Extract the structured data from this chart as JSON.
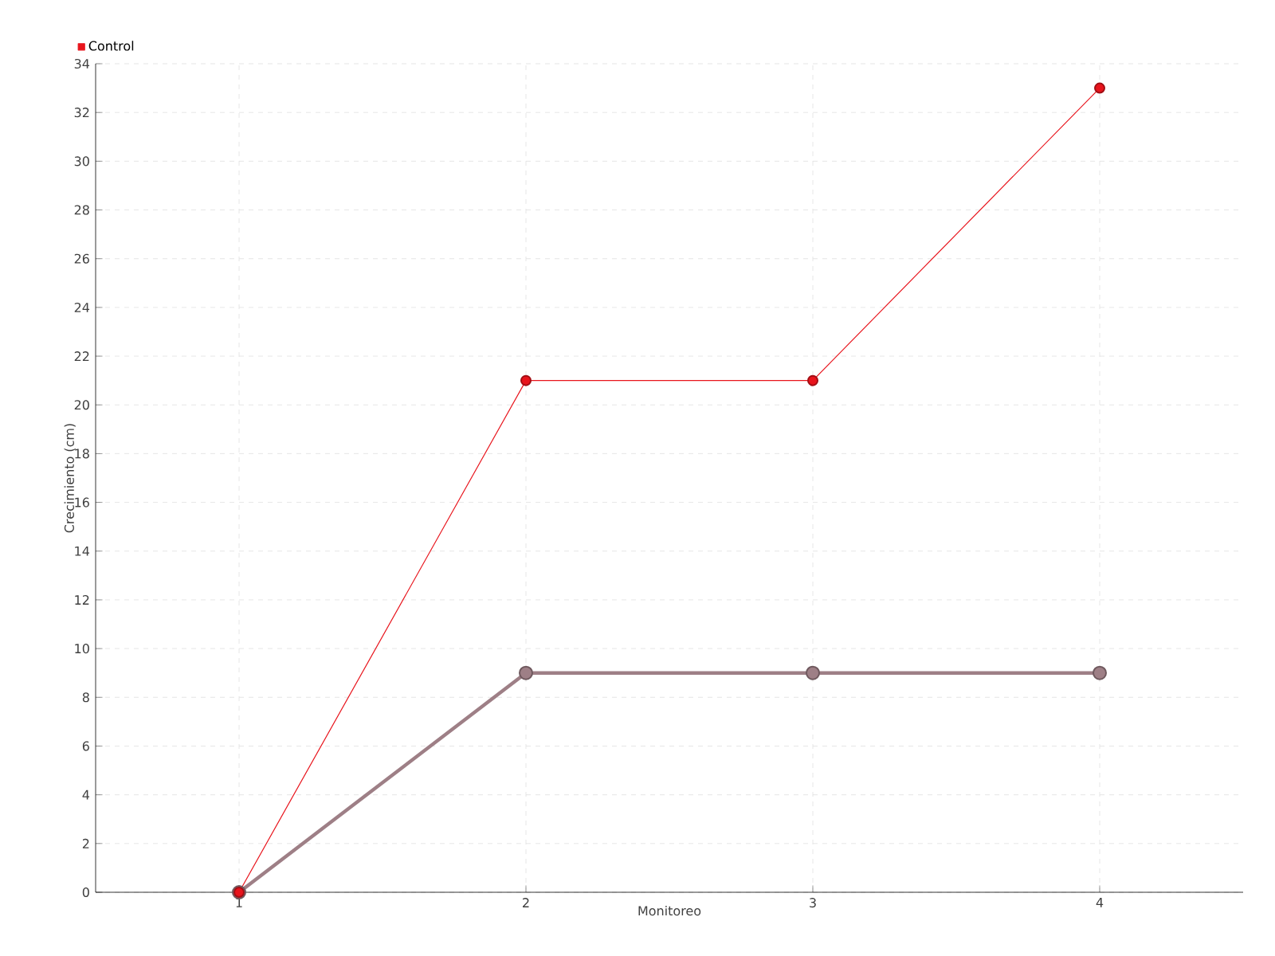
{
  "chart_data": {
    "type": "line",
    "xlabel": "Monitoreo",
    "ylabel": "Crecimiento (cm)",
    "categories": [
      "1",
      "2",
      "3",
      "4"
    ],
    "series": [
      {
        "color": "#9e7f86",
        "values": [
          0,
          9,
          9,
          9
        ]
      },
      {
        "name": "Control",
        "color": "#e8141c",
        "values": [
          0,
          21,
          21,
          33
        ]
      }
    ],
    "ylim": [
      0,
      34
    ],
    "yticks": [
      0,
      2,
      4,
      6,
      8,
      10,
      12,
      14,
      16,
      18,
      20,
      22,
      24,
      26,
      28,
      30,
      32,
      34
    ],
    "grid": true,
    "legend": "top left",
    "marker": "circle"
  }
}
